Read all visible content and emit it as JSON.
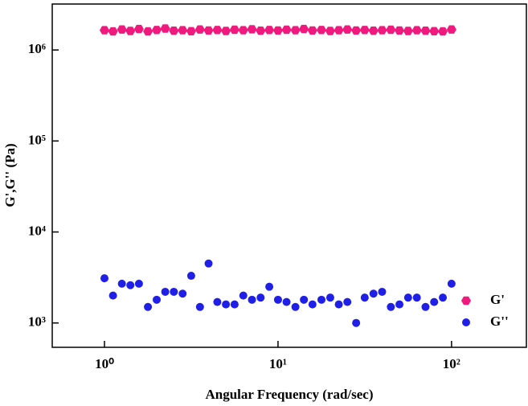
{
  "chart_data": {
    "type": "scatter",
    "xlabel": "Angular Frequency (rad/sec)",
    "ylabel": "G',G'' (Pa)",
    "xscale": "log",
    "yscale": "log",
    "xlim": [
      0.5,
      270
    ],
    "ylim": [
      540,
      3200000
    ],
    "xticks": [
      {
        "value": 1,
        "label": "10⁰"
      },
      {
        "value": 10,
        "label": "10¹"
      },
      {
        "value": 100,
        "label": "10²"
      }
    ],
    "yticks": [
      {
        "value": 1000,
        "label": "10³"
      },
      {
        "value": 10000,
        "label": "10⁴"
      },
      {
        "value": 100000,
        "label": "10⁵"
      },
      {
        "value": 1000000,
        "label": "10⁶"
      }
    ],
    "legend": "lower right",
    "x": [
      1,
      1.12,
      1.26,
      1.41,
      1.58,
      1.78,
      2,
      2.24,
      2.51,
      2.82,
      3.16,
      3.55,
      3.98,
      4.47,
      5.01,
      5.62,
      6.31,
      7.08,
      7.94,
      8.91,
      10,
      11.2,
      12.6,
      14.1,
      15.8,
      17.8,
      20,
      22.4,
      25.1,
      28.2,
      31.6,
      35.5,
      39.8,
      44.7,
      50.1,
      56.2,
      63.1,
      70.8,
      79.4,
      89.1,
      100
    ],
    "series": [
      {
        "name": "G'",
        "color": "#f0197d",
        "marker": "hexagon",
        "values": [
          1650000,
          1600000,
          1680000,
          1620000,
          1700000,
          1600000,
          1660000,
          1720000,
          1630000,
          1650000,
          1610000,
          1680000,
          1640000,
          1660000,
          1620000,
          1670000,
          1650000,
          1690000,
          1630000,
          1660000,
          1640000,
          1670000,
          1650000,
          1700000,
          1640000,
          1660000,
          1620000,
          1650000,
          1680000,
          1640000,
          1660000,
          1630000,
          1650000,
          1670000,
          1640000,
          1620000,
          1650000,
          1630000,
          1610000,
          1600000,
          1680000
        ]
      },
      {
        "name": "G''",
        "color": "#1f1fe8",
        "marker": "circle",
        "values": [
          3100,
          2000,
          2700,
          2600,
          2700,
          1500,
          1800,
          2200,
          2200,
          2100,
          3300,
          1500,
          4500,
          1700,
          1600,
          1600,
          2000,
          1800,
          1900,
          2500,
          1800,
          1700,
          1500,
          1800,
          1600,
          1800,
          1900,
          1600,
          1700,
          1000,
          1900,
          2100,
          2200,
          1500,
          1600,
          1900,
          1900,
          1500,
          1700,
          1900,
          2700
        ]
      }
    ]
  }
}
